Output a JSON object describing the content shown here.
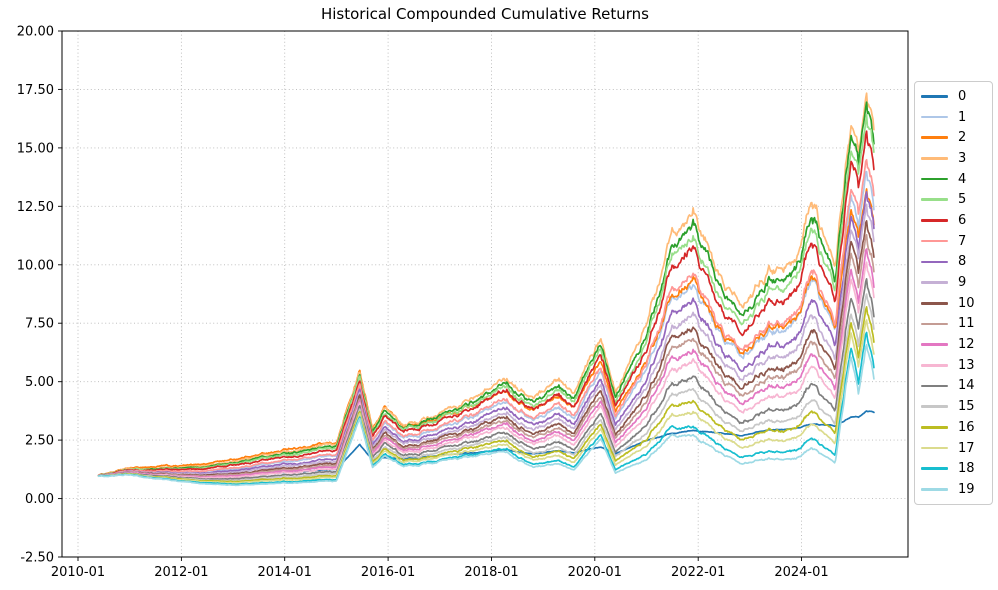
{
  "title": "Historical Compounded Cumulative Returns",
  "chart_data": {
    "type": "line",
    "title": "Historical Compounded Cumulative Returns",
    "xlabel": "",
    "ylabel": "",
    "grid": "dotted",
    "legend_position": "outside-right",
    "xlim": [
      2009.69,
      2026.06
    ],
    "ylim": [
      -2.5,
      20
    ],
    "xticks": {
      "values": [
        2010,
        2012,
        2014,
        2016,
        2018,
        2020,
        2022,
        2024
      ],
      "labels": [
        "2010-01",
        "2012-01",
        "2014-01",
        "2016-01",
        "2018-01",
        "2020-01",
        "2022-01",
        "2024-01"
      ]
    },
    "yticks": {
      "values": [
        -2.5,
        0,
        2.5,
        5,
        7.5,
        10,
        12.5,
        15,
        17.5,
        20
      ],
      "labels": [
        "-2.50",
        "0.00",
        "2.50",
        "5.00",
        "7.50",
        "10.00",
        "12.50",
        "15.00",
        "17.50",
        "20.00"
      ]
    },
    "x_years": [
      2010.4,
      2011.0,
      2011.7,
      2012.3,
      2013.0,
      2013.7,
      2014.3,
      2015.0,
      2015.45,
      2015.7,
      2015.95,
      2016.3,
      2017.0,
      2017.7,
      2018.3,
      2018.8,
      2019.3,
      2019.6,
      2020.12,
      2020.4,
      2021.0,
      2021.5,
      2021.9,
      2022.4,
      2022.8,
      2023.3,
      2023.9,
      2024.2,
      2024.65,
      2024.95,
      2025.1,
      2025.25,
      2025.4
    ],
    "series": [
      {
        "name": "0",
        "color": "#1f77b4",
        "values": [
          1.0,
          1.1,
          1.0,
          0.95,
          1.0,
          1.1,
          1.15,
          1.25,
          2.3,
          1.65,
          1.75,
          1.7,
          1.85,
          1.95,
          2.1,
          1.9,
          2.05,
          1.95,
          2.2,
          1.95,
          2.5,
          2.8,
          2.95,
          2.8,
          2.7,
          2.95,
          3.0,
          3.2,
          3.1,
          3.5,
          3.45,
          3.7,
          3.65
        ]
      },
      {
        "name": "1",
        "color": "#aec7e8",
        "values": [
          0.99,
          1.17,
          1.14,
          1.13,
          1.27,
          1.5,
          1.65,
          1.8,
          4.76,
          2.39,
          3.28,
          2.54,
          3.03,
          3.5,
          4.14,
          3.36,
          3.95,
          3.41,
          5.51,
          3.63,
          5.64,
          8.77,
          9.53,
          7.02,
          6.21,
          7.22,
          7.55,
          9.54,
          7.14,
          13.07,
          11.34,
          13.54,
          12.14
        ]
      },
      {
        "name": "2",
        "color": "#ff7f0e",
        "values": [
          1.02,
          1.3,
          1.38,
          1.42,
          1.68,
          1.98,
          2.18,
          2.38,
          5.45,
          2.95,
          4.0,
          3.05,
          3.5,
          3.95,
          4.6,
          3.8,
          4.4,
          3.85,
          5.9,
          4.0,
          6.0,
          8.9,
          9.7,
          7.2,
          6.4,
          7.4,
          7.7,
          9.6,
          7.2,
          12.5,
          11.0,
          12.8,
          11.6
        ]
      },
      {
        "name": "3",
        "color": "#ffbb78",
        "values": [
          1.0,
          1.25,
          1.3,
          1.35,
          1.6,
          1.9,
          2.1,
          2.3,
          5.4,
          2.9,
          3.95,
          3.1,
          3.7,
          4.3,
          5.15,
          4.3,
          5.1,
          4.45,
          6.9,
          4.8,
          7.5,
          11.6,
          12.7,
          9.4,
          8.4,
          9.8,
          10.3,
          13.0,
          9.8,
          16.3,
          14.6,
          16.9,
          15.5
        ]
      },
      {
        "name": "4",
        "color": "#2ca02c",
        "values": [
          1.0,
          1.24,
          1.27,
          1.31,
          1.54,
          1.82,
          2.02,
          2.21,
          5.28,
          2.8,
          3.82,
          3.0,
          3.57,
          4.15,
          4.96,
          4.12,
          4.88,
          4.26,
          6.64,
          4.58,
          7.15,
          11.07,
          12.11,
          8.95,
          7.99,
          9.32,
          9.78,
          12.35,
          9.3,
          15.69,
          13.99,
          16.27,
          14.87
        ]
      },
      {
        "name": "5",
        "color": "#98df8a",
        "values": [
          1.0,
          1.22,
          1.25,
          1.27,
          1.49,
          1.76,
          1.94,
          2.13,
          5.18,
          2.72,
          3.72,
          2.91,
          3.47,
          4.03,
          4.8,
          3.98,
          4.7,
          4.09,
          6.42,
          4.4,
          6.86,
          10.63,
          11.61,
          8.58,
          7.65,
          8.92,
          9.35,
          11.81,
          8.89,
          15.19,
          13.48,
          15.75,
          14.35
        ]
      },
      {
        "name": "6",
        "color": "#d62728",
        "values": [
          1.0,
          1.21,
          1.22,
          1.23,
          1.43,
          1.69,
          1.86,
          2.04,
          5.06,
          2.63,
          3.59,
          2.8,
          3.34,
          3.88,
          4.61,
          3.8,
          4.49,
          3.9,
          6.16,
          4.18,
          6.51,
          10.1,
          11.02,
          8.13,
          7.24,
          8.43,
          8.84,
          11.16,
          8.39,
          14.58,
          12.87,
          15.12,
          13.72
        ]
      },
      {
        "name": "7",
        "color": "#ff9896",
        "values": [
          0.99,
          1.18,
          1.16,
          1.15,
          1.31,
          1.55,
          1.7,
          1.87,
          4.84,
          2.45,
          3.36,
          2.61,
          3.11,
          3.6,
          4.27,
          3.47,
          4.09,
          3.54,
          5.68,
          3.78,
          5.88,
          9.12,
          9.93,
          7.31,
          6.48,
          7.55,
          7.89,
          9.98,
          7.48,
          13.47,
          11.74,
          13.96,
          12.56
        ]
      },
      {
        "name": "8",
        "color": "#9467bd",
        "values": [
          0.99,
          1.15,
          1.1,
          1.07,
          1.19,
          1.4,
          1.53,
          1.68,
          4.6,
          2.26,
          3.11,
          2.4,
          2.86,
          3.3,
          3.89,
          3.12,
          3.66,
          3.15,
          5.16,
          3.34,
          5.18,
          8.06,
          8.74,
          6.42,
          5.66,
          6.58,
          6.86,
          8.68,
          6.48,
          12.26,
          10.52,
          12.7,
          11.3
        ]
      },
      {
        "name": "9",
        "color": "#c5b0d5",
        "values": [
          0.99,
          1.14,
          1.07,
          1.03,
          1.13,
          1.32,
          1.45,
          1.59,
          4.48,
          2.16,
          2.98,
          2.3,
          2.73,
          3.15,
          3.7,
          2.94,
          3.44,
          2.96,
          4.9,
          3.12,
          4.83,
          7.53,
          8.15,
          5.97,
          5.25,
          6.1,
          6.34,
          8.03,
          5.98,
          11.65,
          9.91,
          12.07,
          10.67
        ]
      },
      {
        "name": "10",
        "color": "#8c564b",
        "values": [
          0.98,
          1.12,
          1.04,
          0.99,
          1.07,
          1.24,
          1.36,
          1.49,
          4.36,
          2.07,
          2.86,
          2.19,
          2.61,
          3.0,
          3.51,
          2.77,
          3.23,
          2.76,
          4.64,
          2.9,
          4.48,
          7.0,
          7.55,
          5.53,
          4.84,
          5.61,
          5.83,
          7.38,
          5.48,
          11.05,
          9.3,
          11.44,
          10.04
        ]
      },
      {
        "name": "11",
        "color": "#c49c94",
        "values": [
          0.98,
          1.11,
          1.02,
          0.95,
          1.02,
          1.18,
          1.29,
          1.42,
          4.26,
          1.99,
          2.75,
          2.1,
          2.5,
          2.88,
          3.35,
          2.62,
          3.05,
          2.6,
          4.42,
          2.72,
          4.19,
          6.56,
          7.06,
          5.15,
          4.5,
          5.21,
          5.4,
          6.84,
          5.07,
          10.54,
          8.79,
          10.92,
          9.52
        ]
      },
      {
        "name": "12",
        "color": "#e377c2",
        "values": [
          0.98,
          1.1,
          0.99,
          0.92,
          0.97,
          1.12,
          1.22,
          1.34,
          4.16,
          1.91,
          2.65,
          2.02,
          2.4,
          2.75,
          3.2,
          2.47,
          2.87,
          2.44,
          4.2,
          2.54,
          3.9,
          6.11,
          6.56,
          4.78,
          4.15,
          4.81,
          4.97,
          6.3,
          4.65,
          10.04,
          8.28,
          10.39,
          8.99
        ]
      },
      {
        "name": "13",
        "color": "#f7b6d2",
        "values": [
          0.98,
          1.08,
          0.97,
          0.88,
          0.92,
          1.06,
          1.15,
          1.26,
          4.06,
          1.83,
          2.54,
          1.93,
          2.29,
          2.63,
          3.04,
          2.32,
          2.69,
          2.27,
          3.99,
          2.35,
          3.61,
          5.67,
          6.07,
          4.41,
          3.81,
          4.41,
          4.54,
          5.76,
          4.24,
          9.53,
          7.77,
          9.87,
          8.47
        ]
      },
      {
        "name": "14",
        "color": "#7f7f7f",
        "values": [
          0.98,
          1.07,
          0.93,
          0.83,
          0.85,
          0.97,
          1.05,
          1.15,
          3.92,
          1.72,
          2.4,
          1.81,
          2.15,
          2.45,
          2.82,
          2.12,
          2.44,
          2.05,
          3.68,
          2.1,
          3.21,
          5.05,
          5.37,
          3.89,
          3.33,
          3.84,
          3.94,
          5.01,
          3.66,
          8.83,
          7.05,
          9.13,
          7.73
        ]
      },
      {
        "name": "15",
        "color": "#c7c7c7",
        "values": [
          0.98,
          1.05,
          0.9,
          0.79,
          0.78,
          0.89,
          0.96,
          1.06,
          3.8,
          1.62,
          2.27,
          1.7,
          2.02,
          2.3,
          2.63,
          1.94,
          2.22,
          1.85,
          3.42,
          1.88,
          2.86,
          4.52,
          4.78,
          3.44,
          2.92,
          3.36,
          3.42,
          4.36,
          3.16,
          8.22,
          6.44,
          8.5,
          7.1
        ]
      },
      {
        "name": "16",
        "color": "#bcbd22",
        "values": [
          0.97,
          1.04,
          0.88,
          0.76,
          0.73,
          0.83,
          0.89,
          0.98,
          3.7,
          1.54,
          2.17,
          1.61,
          1.92,
          2.18,
          2.47,
          1.79,
          2.04,
          1.69,
          3.2,
          1.7,
          2.57,
          4.08,
          4.29,
          3.07,
          2.58,
          2.96,
          2.99,
          3.82,
          2.75,
          7.72,
          5.93,
          7.98,
          6.58
        ]
      },
      {
        "name": "17",
        "color": "#dbdb8d",
        "values": [
          0.97,
          1.03,
          0.85,
          0.72,
          0.68,
          0.77,
          0.82,
          0.91,
          3.6,
          1.46,
          2.06,
          1.53,
          1.81,
          2.05,
          2.32,
          1.65,
          1.86,
          1.53,
          2.99,
          1.52,
          2.28,
          3.64,
          3.79,
          2.7,
          2.24,
          2.56,
          2.56,
          3.28,
          2.33,
          7.21,
          5.42,
          7.45,
          6.05
        ]
      },
      {
        "name": "18",
        "color": "#17becf",
        "values": [
          0.97,
          1.01,
          0.82,
          0.68,
          0.62,
          0.69,
          0.74,
          0.81,
          3.48,
          1.36,
          1.93,
          1.42,
          1.68,
          1.9,
          2.13,
          1.47,
          1.64,
          1.33,
          2.72,
          1.3,
          1.93,
          3.1,
          3.2,
          2.25,
          1.82,
          2.07,
          2.04,
          2.63,
          1.83,
          6.6,
          4.81,
          6.82,
          5.42
        ]
      },
      {
        "name": "19",
        "color": "#9edae5",
        "values": [
          0.97,
          1.0,
          0.8,
          0.65,
          0.58,
          0.64,
          0.68,
          0.75,
          3.4,
          1.3,
          1.85,
          1.35,
          1.6,
          1.8,
          2.0,
          1.35,
          1.5,
          1.2,
          2.55,
          1.15,
          1.7,
          2.75,
          2.8,
          1.95,
          1.55,
          1.75,
          1.7,
          2.2,
          1.5,
          6.2,
          4.4,
          6.4,
          5.0
        ]
      }
    ]
  }
}
